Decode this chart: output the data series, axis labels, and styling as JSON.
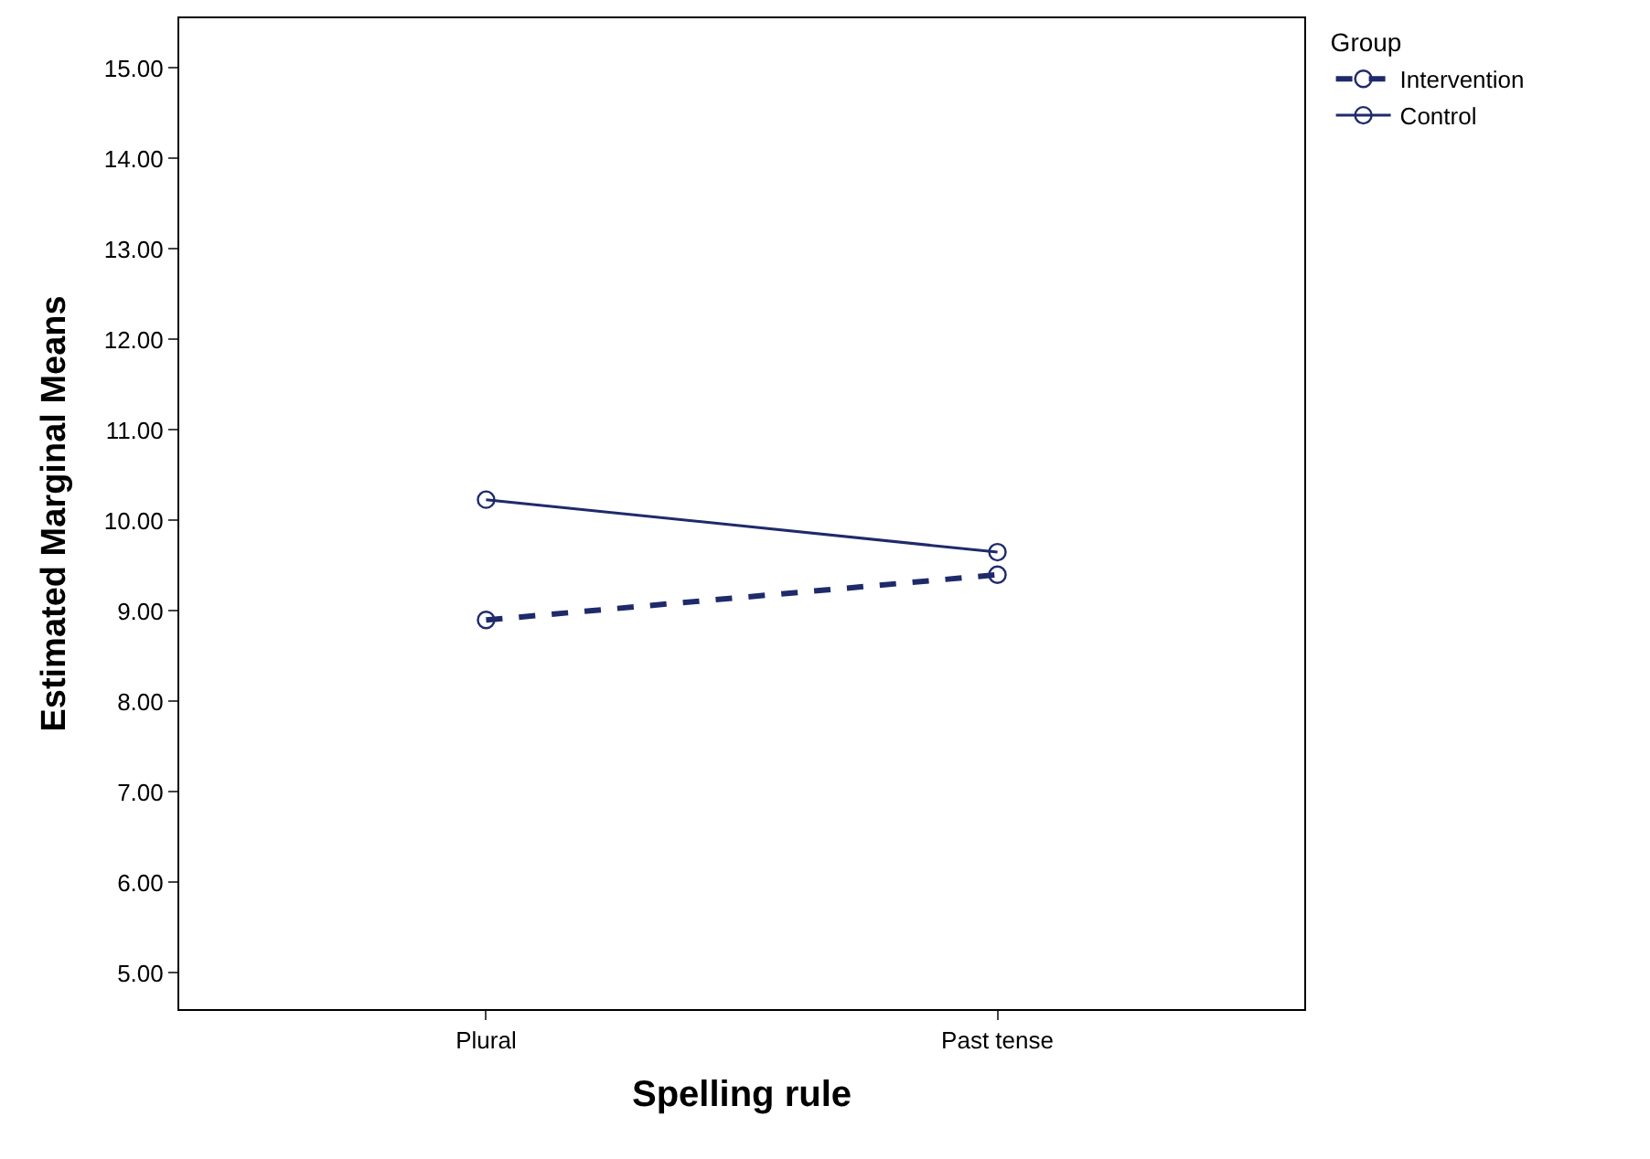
{
  "chart_data": {
    "type": "line",
    "xlabel": "Spelling rule",
    "ylabel": "Estimated Marginal Means",
    "legend_title": "Group",
    "categories": [
      "Plural",
      "Past tense"
    ],
    "series": [
      {
        "name": "Intervention",
        "color": "#1f2a6b",
        "line_style": "dashed",
        "values": [
          8.9,
          9.4
        ]
      },
      {
        "name": "Control",
        "color": "#1f2a6b",
        "line_style": "solid",
        "values": [
          10.23,
          9.65
        ]
      }
    ],
    "ylim": [
      4.6,
      15.55
    ],
    "yticks": [
      {
        "value": 5,
        "label": "5.00"
      },
      {
        "value": 6,
        "label": "6.00"
      },
      {
        "value": 7,
        "label": "7.00"
      },
      {
        "value": 8,
        "label": "8.00"
      },
      {
        "value": 9,
        "label": "9.00"
      },
      {
        "value": 10,
        "label": "10.00"
      },
      {
        "value": 11,
        "label": "11.00"
      },
      {
        "value": 12,
        "label": "12.00"
      },
      {
        "value": 13,
        "label": "13.00"
      },
      {
        "value": 14,
        "label": "14.00"
      },
      {
        "value": 15,
        "label": "15.00"
      }
    ],
    "marker": "circle",
    "legend": "top right"
  }
}
